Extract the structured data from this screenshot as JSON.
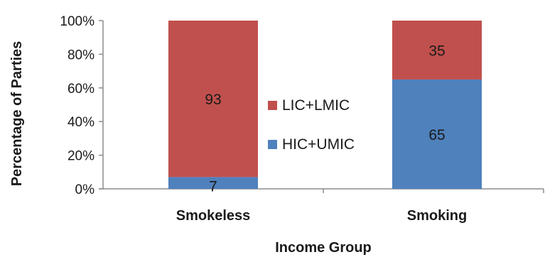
{
  "chart_data": {
    "type": "bar",
    "stacked": true,
    "percent_stacked": true,
    "categories": [
      "Smokeless",
      "Smoking"
    ],
    "series": [
      {
        "name": "HIC+UMIC",
        "values": [
          7,
          65
        ],
        "color": "#4f81bd"
      },
      {
        "name": "LIC+LMIC",
        "values": [
          93,
          35
        ],
        "color": "#c0504d"
      }
    ],
    "y_ticks": [
      "0%",
      "20%",
      "40%",
      "60%",
      "80%",
      "100%"
    ],
    "ylim": [
      0,
      100
    ],
    "xlabel": "Income Group",
    "ylabel": "Percentage of Parties",
    "grid": false,
    "legend_position": "center"
  }
}
